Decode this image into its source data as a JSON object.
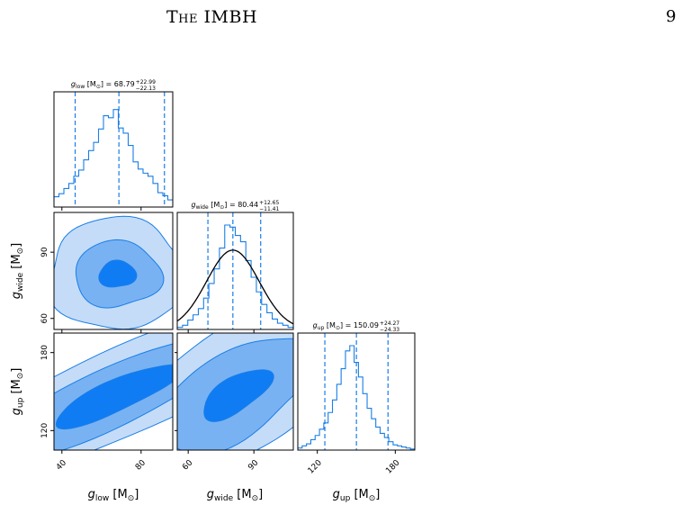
{
  "header": {
    "running_head": "The IMBH",
    "page_number": "9"
  },
  "colors": {
    "fill_outer": "#c4dcf8",
    "fill_mid": "#79b2f2",
    "fill_inner": "#0f7cf4",
    "line": "#1a7ee6",
    "gauss": "#000000"
  },
  "chart_data": {
    "type": "corner",
    "parameters": [
      {
        "id": "low",
        "title_sym": "g",
        "title_sub": "low",
        "title_rest": " [M",
        "title_sun": "⊙",
        "title_close": "] = ",
        "median": "68.79",
        "plus": "+22.99",
        "minus": "−22.13",
        "axis_sym": "g",
        "axis_sub": "low",
        "axis_unit_open": " [M",
        "axis_sun": "⊙",
        "axis_unit_close": "]",
        "range": [
          36,
          96
        ],
        "ticks": [
          40,
          80
        ],
        "quantiles": [
          46.7,
          68.8,
          91.8
        ]
      },
      {
        "id": "wide",
        "title_sym": "g",
        "title_sub": "wide",
        "title_rest": " [M",
        "title_sun": "⊙",
        "title_close": "] = ",
        "median": "80.44",
        "plus": "+12.65",
        "minus": "−11.41",
        "axis_sym": "g",
        "axis_sub": "wide",
        "axis_unit_open": " [M",
        "axis_sun": "⊙",
        "axis_unit_close": "]",
        "range": [
          55,
          108
        ],
        "ticks": [
          60,
          90
        ],
        "quantiles": [
          69.0,
          80.4,
          93.1
        ]
      },
      {
        "id": "up",
        "title_sym": "g",
        "title_sub": "up",
        "title_rest": " [M",
        "title_sun": "⊙",
        "title_close": "] = ",
        "median": "150.09",
        "plus": "+24.27",
        "minus": "−24.33",
        "axis_sym": "g",
        "axis_sub": "up",
        "axis_unit_open": " [M",
        "axis_sun": "⊙",
        "axis_unit_close": "]",
        "range": [
          105,
          195
        ],
        "ticks": [
          120,
          180
        ],
        "quantiles": [
          125.8,
          150.1,
          174.4
        ]
      }
    ],
    "histograms": {
      "low": [
        0.1,
        0.13,
        0.18,
        0.23,
        0.3,
        0.36,
        0.46,
        0.55,
        0.63,
        0.76,
        0.89,
        0.87,
        0.95,
        0.77,
        0.72,
        0.6,
        0.44,
        0.37,
        0.33,
        0.3,
        0.23,
        0.14,
        0.11,
        0.07
      ],
      "wide": [
        0.02,
        0.04,
        0.09,
        0.14,
        0.2,
        0.3,
        0.44,
        0.58,
        0.78,
        1.0,
        0.98,
        0.9,
        0.84,
        0.66,
        0.5,
        0.36,
        0.24,
        0.16,
        0.1,
        0.06,
        0.04,
        0.02
      ],
      "up": [
        0.02,
        0.04,
        0.06,
        0.1,
        0.14,
        0.2,
        0.26,
        0.36,
        0.48,
        0.63,
        0.78,
        0.95,
        1.0,
        0.84,
        0.7,
        0.54,
        0.4,
        0.3,
        0.22,
        0.16,
        0.12,
        0.08,
        0.05,
        0.04,
        0.03,
        0.02,
        0.01
      ]
    },
    "gaussian_overlay": {
      "parameter": "wide",
      "mean": 80.4,
      "sigma": 12.0,
      "peak_fraction": 0.76
    },
    "contour_levels": 3
  }
}
